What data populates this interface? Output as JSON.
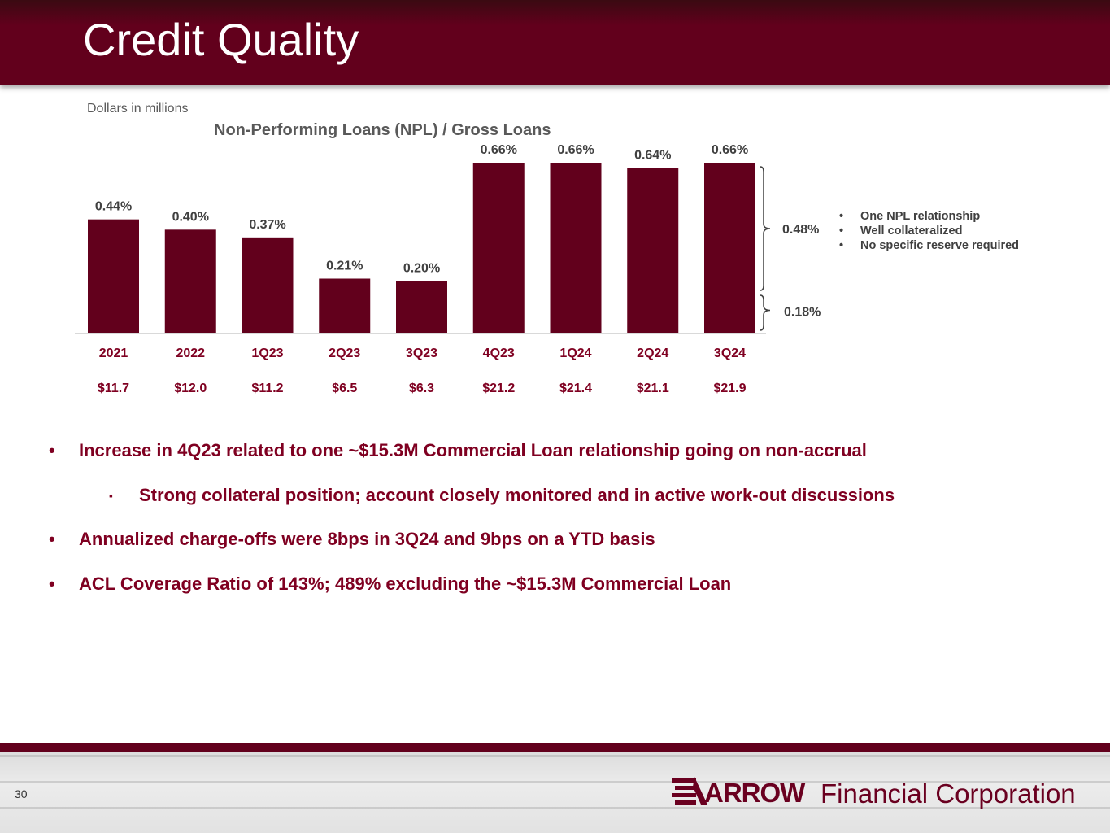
{
  "header": {
    "title": "Credit Quality"
  },
  "units_note": "Dollars in millions",
  "chart_data": {
    "type": "bar",
    "title": "Non-Performing Loans (NPL) / Gross Loans",
    "xlabel": "",
    "ylabel": "",
    "ylim": [
      0,
      0.66
    ],
    "categories": [
      "2021",
      "2022",
      "1Q23",
      "2Q23",
      "3Q23",
      "4Q23",
      "1Q24",
      "2Q24",
      "3Q24"
    ],
    "values": [
      0.44,
      0.4,
      0.37,
      0.21,
      0.2,
      0.66,
      0.66,
      0.64,
      0.66
    ],
    "value_labels": [
      "0.44%",
      "0.40%",
      "0.37%",
      "0.21%",
      "0.20%",
      "0.66%",
      "0.66%",
      "0.64%",
      "0.66%"
    ],
    "npl_amounts": [
      "$11.7",
      "$12.0",
      "$11.2",
      "$6.5",
      "$6.3",
      "$21.2",
      "$21.4",
      "$21.1",
      "$21.9"
    ],
    "bar_color": "#62001c",
    "breakdown": [
      {
        "label": "0.48%",
        "value": 0.48
      },
      {
        "label": "0.18%",
        "value": 0.18
      }
    ]
  },
  "breakdown_notes": [
    "One NPL relationship",
    "Well collateralized",
    "No specific reserve required"
  ],
  "bullets": [
    {
      "marker": "•",
      "text": "Increase in 4Q23 related to one  ~$15.3M Commercial Loan relationship going on non-accrual"
    },
    {
      "marker": "▪",
      "text": "Strong collateral position; account closely monitored and in active work-out discussions"
    },
    {
      "marker": "•",
      "text": "Annualized charge-offs were 8bps in 3Q24 and 9bps on a YTD basis"
    },
    {
      "marker": "•",
      "text": "ACL Coverage Ratio of 143%; 489% excluding the ~$15.3M Commercial Loan"
    }
  ],
  "footer": {
    "page_number": "30",
    "logo_word": "ARROW",
    "logo_sub": "Financial Corporation"
  },
  "colors": {
    "brand": "#62001c",
    "accent_text": "#7f0021"
  }
}
